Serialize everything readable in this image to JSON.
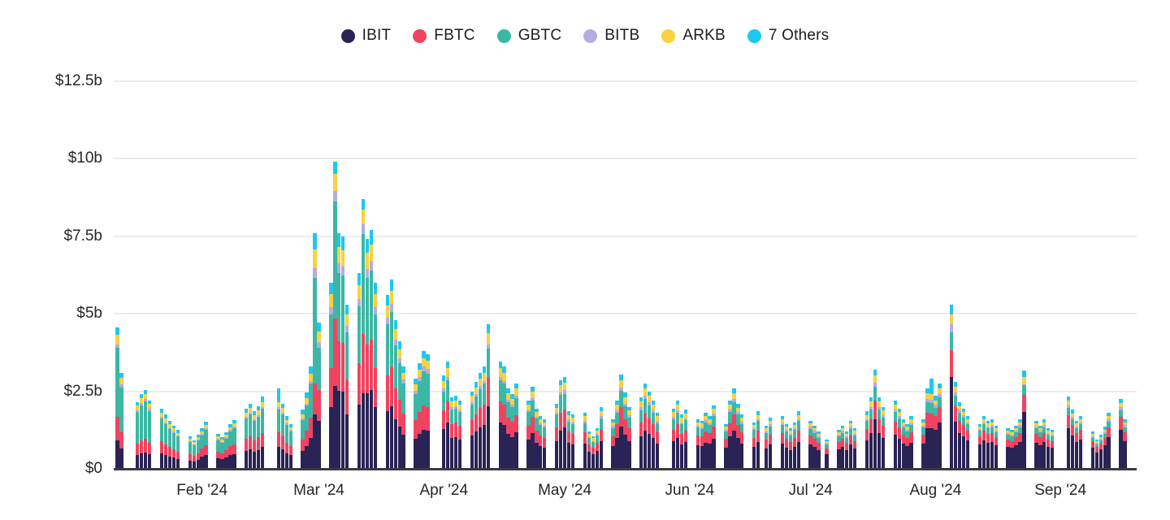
{
  "legend": {
    "items": [
      {
        "key": "ibit",
        "label": "IBIT"
      },
      {
        "key": "fbtc",
        "label": "FBTC"
      },
      {
        "key": "gbtc",
        "label": "GBTC"
      },
      {
        "key": "bitb",
        "label": "BITB"
      },
      {
        "key": "arkb",
        "label": "ARKB"
      },
      {
        "key": "others",
        "label": "7 Others"
      }
    ]
  },
  "chart_data": {
    "type": "bar",
    "stacked": true,
    "title": "",
    "unit": "USD billions per trading day",
    "series_names": [
      "IBIT",
      "FBTC",
      "GBTC",
      "BITB",
      "ARKB",
      "7 Others"
    ],
    "series_order": [
      "ibit",
      "fbtc",
      "gbtc",
      "bitb",
      "arkb",
      "others"
    ],
    "colors": {
      "ibit": "#2a2355",
      "fbtc": "#f0435f",
      "gbtc": "#3cb7a4",
      "bitb": "#b7abe1",
      "arkb": "#f8d23e",
      "others": "#1ec7f1",
      "grid": "#ececee",
      "baseline": "#3a3a40",
      "text": "#26262b"
    },
    "y_axis": {
      "ylim": [
        0,
        12.5
      ],
      "ticks": [
        {
          "label": "$12.5b",
          "value": 12.5
        },
        {
          "label": "$10b",
          "value": 10
        },
        {
          "label": "$7.5b",
          "value": 7.5
        },
        {
          "label": "$5b",
          "value": 5
        },
        {
          "label": "$2.5b",
          "value": 2.5
        },
        {
          "label": "$0",
          "value": 0
        }
      ]
    },
    "x_axis": {
      "ticks": [
        {
          "label": "Feb '24",
          "date": "2024-02-01"
        },
        {
          "label": "Mar '24",
          "date": "2024-03-01"
        },
        {
          "label": "Apr '24",
          "date": "2024-04-01"
        },
        {
          "label": "May '24",
          "date": "2024-05-01"
        },
        {
          "label": "Jun '24",
          "date": "2024-06-01"
        },
        {
          "label": "Jul '24",
          "date": "2024-07-01"
        },
        {
          "label": "Aug '24",
          "date": "2024-08-01"
        },
        {
          "label": "Sep '24",
          "date": "2024-09-01"
        }
      ]
    },
    "mixes": {
      "jan11": [
        0.2,
        0.17,
        0.49,
        0.02,
        0.07,
        0.05
      ],
      "jan_early": [
        0.21,
        0.17,
        0.47,
        0.03,
        0.07,
        0.05
      ],
      "jan_late": [
        0.26,
        0.19,
        0.38,
        0.03,
        0.07,
        0.07
      ],
      "feb": [
        0.3,
        0.2,
        0.33,
        0.03,
        0.07,
        0.07
      ],
      "feb20": [
        0.27,
        0.18,
        0.29,
        0.03,
        0.06,
        0.17
      ],
      "feb29": [
        0.23,
        0.13,
        0.45,
        0.04,
        0.08,
        0.07
      ],
      "mar": [
        0.33,
        0.21,
        0.29,
        0.04,
        0.07,
        0.06
      ],
      "mar5": [
        0.27,
        0.22,
        0.38,
        0.035,
        0.055,
        0.04
      ],
      "mar12": [
        0.28,
        0.22,
        0.37,
        0.035,
        0.055,
        0.04
      ],
      "apr": [
        0.43,
        0.2,
        0.2,
        0.03,
        0.08,
        0.06
      ],
      "may": [
        0.45,
        0.2,
        0.17,
        0.04,
        0.08,
        0.06
      ],
      "jun": [
        0.47,
        0.2,
        0.16,
        0.04,
        0.07,
        0.06
      ],
      "jul": [
        0.5,
        0.19,
        0.14,
        0.04,
        0.07,
        0.06
      ],
      "jul31": [
        0.45,
        0.16,
        0.12,
        0.04,
        0.06,
        0.17
      ],
      "aug": [
        0.54,
        0.18,
        0.12,
        0.04,
        0.06,
        0.06
      ],
      "aug5": [
        0.56,
        0.16,
        0.11,
        0.05,
        0.06,
        0.06
      ],
      "aug23": [
        0.58,
        0.17,
        0.1,
        0.01,
        0.07,
        0.07
      ],
      "sep": [
        0.56,
        0.18,
        0.1,
        0.04,
        0.06,
        0.06
      ]
    },
    "month_default_mix": {
      "1": "jan_late",
      "2": "feb",
      "3": "mar",
      "4": "apr",
      "5": "may",
      "6": "jun",
      "7": "jul",
      "8": "aug",
      "9": "sep"
    },
    "bars": [
      [
        "2024-01-11",
        4.55,
        "jan11"
      ],
      [
        "2024-01-12",
        3.08,
        "jan_early"
      ],
      [
        "2024-01-16",
        2.15,
        "jan_early"
      ],
      [
        "2024-01-17",
        2.4,
        "jan_early"
      ],
      [
        "2024-01-18",
        2.55,
        "jan_early"
      ],
      [
        "2024-01-19",
        2.2,
        "jan_early"
      ],
      [
        "2024-01-22",
        1.95
      ],
      [
        "2024-01-23",
        1.75
      ],
      [
        "2024-01-24",
        1.55
      ],
      [
        "2024-01-25",
        1.4
      ],
      [
        "2024-01-26",
        1.25
      ],
      [
        "2024-01-29",
        1.05
      ],
      [
        "2024-01-30",
        0.92
      ],
      [
        "2024-01-31",
        1.1
      ],
      [
        "2024-02-01",
        1.3
      ],
      [
        "2024-02-02",
        1.52
      ],
      [
        "2024-02-05",
        1.12
      ],
      [
        "2024-02-06",
        1.02
      ],
      [
        "2024-02-07",
        1.18
      ],
      [
        "2024-02-08",
        1.45
      ],
      [
        "2024-02-09",
        1.58
      ],
      [
        "2024-02-12",
        1.95
      ],
      [
        "2024-02-13",
        2.1
      ],
      [
        "2024-02-14",
        1.85
      ],
      [
        "2024-02-15",
        2.02
      ],
      [
        "2024-02-16",
        2.32
      ],
      [
        "2024-02-20",
        2.6,
        "feb20"
      ],
      [
        "2024-02-21",
        2.1
      ],
      [
        "2024-02-22",
        1.7
      ],
      [
        "2024-02-23",
        1.45
      ],
      [
        "2024-02-26",
        1.9
      ],
      [
        "2024-02-27",
        2.45
      ],
      [
        "2024-02-28",
        3.3
      ],
      [
        "2024-02-29",
        7.6,
        "feb29"
      ],
      [
        "2024-03-01",
        4.7
      ],
      [
        "2024-03-04",
        6.0
      ],
      [
        "2024-03-05",
        9.9,
        "mar5"
      ],
      [
        "2024-03-06",
        7.6
      ],
      [
        "2024-03-07",
        7.5
      ],
      [
        "2024-03-08",
        5.3
      ],
      [
        "2024-03-11",
        6.3
      ],
      [
        "2024-03-12",
        8.7,
        "mar12"
      ],
      [
        "2024-03-13",
        7.4
      ],
      [
        "2024-03-14",
        7.7
      ],
      [
        "2024-03-15",
        6.0
      ],
      [
        "2024-03-18",
        5.6
      ],
      [
        "2024-03-19",
        6.1
      ],
      [
        "2024-03-20",
        4.8
      ],
      [
        "2024-03-21",
        4.1
      ],
      [
        "2024-03-22",
        3.3
      ],
      [
        "2024-03-25",
        2.9
      ],
      [
        "2024-03-26",
        3.4
      ],
      [
        "2024-03-27",
        3.8
      ],
      [
        "2024-03-28",
        3.7
      ],
      [
        "2024-04-01",
        3.0
      ],
      [
        "2024-04-02",
        3.45
      ],
      [
        "2024-04-03",
        2.3
      ],
      [
        "2024-04-04",
        2.35
      ],
      [
        "2024-04-05",
        2.2
      ],
      [
        "2024-04-08",
        2.5
      ],
      [
        "2024-04-09",
        2.8
      ],
      [
        "2024-04-10",
        3.1
      ],
      [
        "2024-04-11",
        3.3
      ],
      [
        "2024-04-12",
        4.66
      ],
      [
        "2024-04-15",
        3.45
      ],
      [
        "2024-04-16",
        3.3
      ],
      [
        "2024-04-17",
        2.6
      ],
      [
        "2024-04-18",
        2.4
      ],
      [
        "2024-04-19",
        2.75
      ],
      [
        "2024-04-22",
        2.2
      ],
      [
        "2024-04-23",
        2.65
      ],
      [
        "2024-04-24",
        1.95
      ],
      [
        "2024-04-25",
        1.7
      ],
      [
        "2024-04-26",
        1.6
      ],
      [
        "2024-04-29",
        2.1
      ],
      [
        "2024-04-30",
        2.86
      ],
      [
        "2024-05-01",
        2.95
      ],
      [
        "2024-05-02",
        1.85
      ],
      [
        "2024-05-03",
        1.75
      ],
      [
        "2024-05-06",
        1.8
      ],
      [
        "2024-05-07",
        1.2
      ],
      [
        "2024-05-08",
        1.05
      ],
      [
        "2024-05-09",
        1.3
      ],
      [
        "2024-05-10",
        1.98
      ],
      [
        "2024-05-13",
        1.6
      ],
      [
        "2024-05-14",
        2.2
      ],
      [
        "2024-05-15",
        3.05
      ],
      [
        "2024-05-16",
        2.45
      ],
      [
        "2024-05-17",
        2.0
      ],
      [
        "2024-05-20",
        2.3
      ],
      [
        "2024-05-21",
        2.75
      ],
      [
        "2024-05-22",
        2.5
      ],
      [
        "2024-05-23",
        2.2
      ],
      [
        "2024-05-24",
        1.8
      ],
      [
        "2024-05-28",
        1.95
      ],
      [
        "2024-05-29",
        2.2
      ],
      [
        "2024-05-30",
        1.75
      ],
      [
        "2024-05-31",
        1.9
      ],
      [
        "2024-06-03",
        1.6
      ],
      [
        "2024-06-04",
        1.55
      ],
      [
        "2024-06-05",
        1.8
      ],
      [
        "2024-06-06",
        1.7
      ],
      [
        "2024-06-07",
        2.05
      ],
      [
        "2024-06-10",
        1.45
      ],
      [
        "2024-06-11",
        2.2
      ],
      [
        "2024-06-12",
        2.6
      ],
      [
        "2024-06-13",
        2.1
      ],
      [
        "2024-06-14",
        1.75
      ],
      [
        "2024-06-17",
        1.5
      ],
      [
        "2024-06-18",
        1.85
      ],
      [
        "2024-06-20",
        1.4
      ],
      [
        "2024-06-21",
        1.65
      ],
      [
        "2024-06-24",
        1.7
      ],
      [
        "2024-06-25",
        1.45
      ],
      [
        "2024-06-26",
        1.3
      ],
      [
        "2024-06-27",
        1.5
      ],
      [
        "2024-06-28",
        1.85
      ],
      [
        "2024-07-01",
        1.55
      ],
      [
        "2024-07-02",
        1.4
      ],
      [
        "2024-07-03",
        1.2
      ],
      [
        "2024-07-05",
        0.95
      ],
      [
        "2024-07-08",
        1.25
      ],
      [
        "2024-07-09",
        1.4
      ],
      [
        "2024-07-10",
        1.2
      ],
      [
        "2024-07-11",
        1.55
      ],
      [
        "2024-07-12",
        1.3
      ],
      [
        "2024-07-15",
        1.85
      ],
      [
        "2024-07-16",
        2.3
      ],
      [
        "2024-07-17",
        3.2
      ],
      [
        "2024-07-18",
        2.3
      ],
      [
        "2024-07-19",
        2.0
      ],
      [
        "2024-07-22",
        2.2
      ],
      [
        "2024-07-23",
        1.95
      ],
      [
        "2024-07-24",
        1.6
      ],
      [
        "2024-07-25",
        1.45
      ],
      [
        "2024-07-26",
        1.7
      ],
      [
        "2024-07-29",
        1.6
      ],
      [
        "2024-07-30",
        2.6
      ],
      [
        "2024-07-31",
        2.9,
        "jul31"
      ],
      [
        "2024-08-01",
        2.35
      ],
      [
        "2024-08-02",
        2.75
      ],
      [
        "2024-08-05",
        5.3,
        "aug5"
      ],
      [
        "2024-08-06",
        2.8
      ],
      [
        "2024-08-07",
        2.15
      ],
      [
        "2024-08-08",
        1.95
      ],
      [
        "2024-08-09",
        1.7
      ],
      [
        "2024-08-12",
        1.45
      ],
      [
        "2024-08-13",
        1.7
      ],
      [
        "2024-08-14",
        1.55
      ],
      [
        "2024-08-15",
        1.6
      ],
      [
        "2024-08-16",
        1.4
      ],
      [
        "2024-08-19",
        1.3
      ],
      [
        "2024-08-20",
        1.25
      ],
      [
        "2024-08-21",
        1.4
      ],
      [
        "2024-08-22",
        1.6
      ],
      [
        "2024-08-23",
        3.18,
        "aug23"
      ],
      [
        "2024-08-26",
        1.55
      ],
      [
        "2024-08-27",
        1.4
      ],
      [
        "2024-08-28",
        1.6
      ],
      [
        "2024-08-29",
        1.3
      ],
      [
        "2024-08-30",
        1.25
      ],
      [
        "2024-09-03",
        2.33
      ],
      [
        "2024-09-04",
        1.9
      ],
      [
        "2024-09-05",
        1.55
      ],
      [
        "2024-09-06",
        1.7
      ],
      [
        "2024-09-09",
        1.2
      ],
      [
        "2024-09-10",
        0.95
      ],
      [
        "2024-09-11",
        1.1
      ],
      [
        "2024-09-12",
        1.35
      ],
      [
        "2024-09-13",
        1.8
      ],
      [
        "2024-09-16",
        2.25
      ],
      [
        "2024-09-17",
        1.6
      ]
    ]
  }
}
